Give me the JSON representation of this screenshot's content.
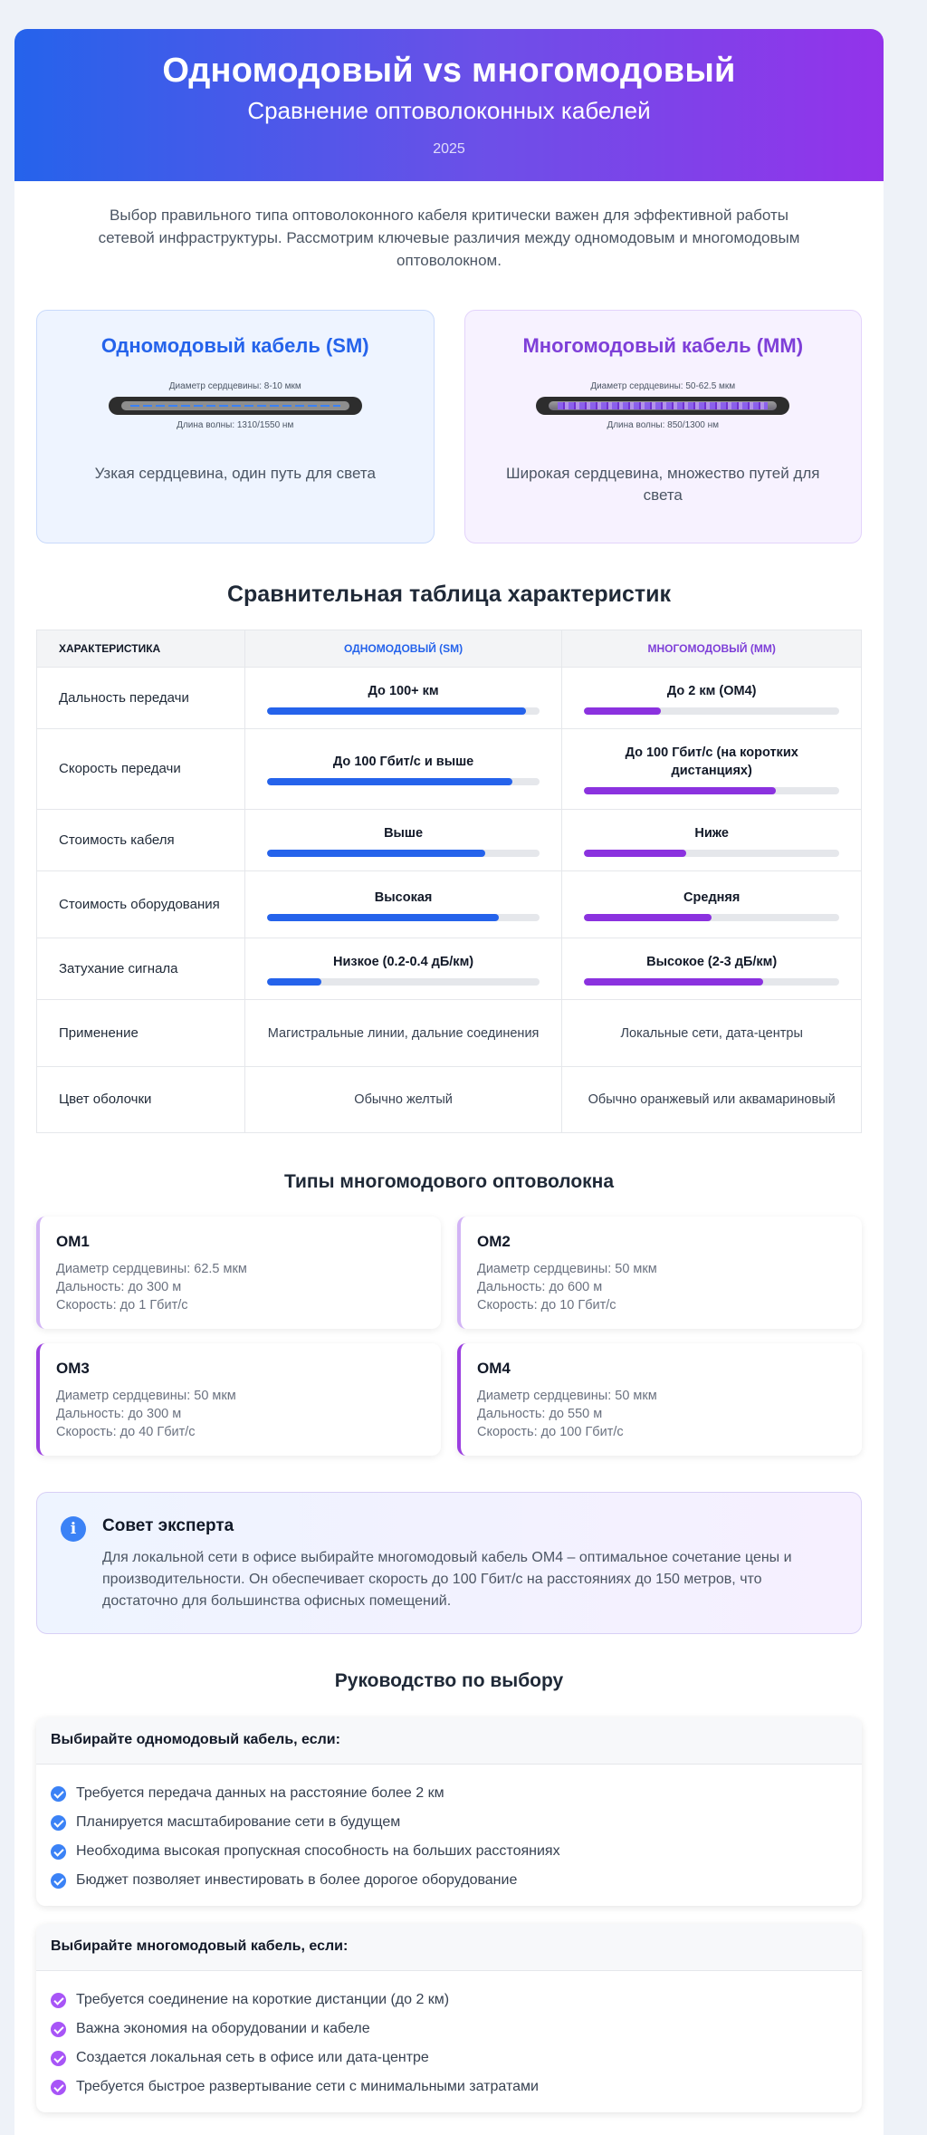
{
  "header": {
    "title": "Одномодовый vs многомодовый",
    "subtitle": "Сравнение оптоволоконных кабелей",
    "year": "2025"
  },
  "intro": "Выбор правильного типа оптоволоконного кабеля критически важен для эффективной работы сетевой инфраструктуры. Рассмотрим ключевые различия между одномодовым и многомодовым оптоволокном.",
  "cards": [
    {
      "title": "Одномодовый кабель (SM)",
      "core_label": "Диаметр сердцевины: 8-10 мкм",
      "wave_label": "Длина волны: 1310/1550 нм",
      "description": "Узкая сердцевина, один путь для света",
      "color": "#2563eb"
    },
    {
      "title": "Многомодовый кабель (MM)",
      "core_label": "Диаметр сердцевины: 50-62.5 мкм",
      "wave_label": "Длина волны: 850/1300 нм",
      "description": "Широкая сердцевина, множество путей для света",
      "color": "#7e3fd8"
    }
  ],
  "comparison": {
    "title": "Сравнительная таблица характеристик",
    "headers": [
      "Характеристика",
      "Одномодовый (SM)",
      "Многомодовый (MM)"
    ],
    "rows": [
      {
        "name": "Дальность передачи",
        "sm": "До 100+ км",
        "sm_level": 0.95,
        "mm": "До 2 км (OM4)",
        "mm_level": 0.3
      },
      {
        "name": "Скорость передачи",
        "sm": "До 100 Гбит/с и выше",
        "sm_level": 0.9,
        "mm": "До 100 Гбит/с (на коротких дистанциях)",
        "mm_level": 0.75
      },
      {
        "name": "Стоимость кабеля",
        "sm": "Выше",
        "sm_level": 0.8,
        "mm": "Ниже",
        "mm_level": 0.4
      },
      {
        "name": "Стоимость оборудования",
        "sm": "Высокая",
        "sm_level": 0.85,
        "mm": "Средняя",
        "mm_level": 0.5
      },
      {
        "name": "Затухание сигнала",
        "sm": "Низкое (0.2-0.4 дБ/км)",
        "sm_level": 0.2,
        "mm": "Высокое (2-3 дБ/км)",
        "mm_level": 0.7
      },
      {
        "name": "Применение",
        "sm": "Магистральные линии, дальние соединения",
        "mm": "Локальные сети, дата-центры"
      },
      {
        "name": "Цвет оболочки",
        "sm": "Обычно желтый",
        "mm": "Обычно оранжевый или аквамариновый"
      }
    ]
  },
  "om_types": {
    "title": "Типы многомодового оптоволокна",
    "items": [
      {
        "name": "OM1",
        "core": "Диаметр сердцевины: 62.5 мкм",
        "range": "Дальность: до 300 м",
        "speed": "Скорость: до 1 Гбит/с"
      },
      {
        "name": "OM2",
        "core": "Диаметр сердцевины: 50 мкм",
        "range": "Дальность: до 600 м",
        "speed": "Скорость: до 10 Гбит/с"
      },
      {
        "name": "OM3",
        "core": "Диаметр сердцевины: 50 мкм",
        "range": "Дальность: до 300 м",
        "speed": "Скорость: до 40 Гбит/с"
      },
      {
        "name": "OM4",
        "core": "Диаметр сердцевины: 50 мкм",
        "range": "Дальность: до 550 м",
        "speed": "Скорость: до 100 Гбит/с"
      }
    ]
  },
  "tip": {
    "icon": "info-icon",
    "glyph": "i",
    "title": "Совет эксперта",
    "text": "Для локальной сети в офисе выбирайте многомодовый кабель OM4 – оптимальное сочетание цены и производительности. Он обеспечивает скорость до 100 Гбит/с на расстояниях до 150 метров, что достаточно для большинства офисных помещений."
  },
  "guide": {
    "title": "Руководство по выбору",
    "sm": {
      "heading": "Выбирайте одномодовый кабель, если:",
      "items": [
        "Требуется передача данных на расстояние более 2 км",
        "Планируется масштабирование сети в будущем",
        "Необходима высокая пропускная способность на больших расстояниях",
        "Бюджет позволяет инвестировать в более дорогое оборудование"
      ]
    },
    "mm": {
      "heading": "Выбирайте многомодовый кабель, если:",
      "items": [
        "Требуется соединение на короткие дистанции (до 2 км)",
        "Важна экономия на оборудовании и кабеле",
        "Создается локальная сеть в офисе или дата-центре",
        "Требуется быстрое развертывание сети с минимальными затратами"
      ]
    }
  }
}
